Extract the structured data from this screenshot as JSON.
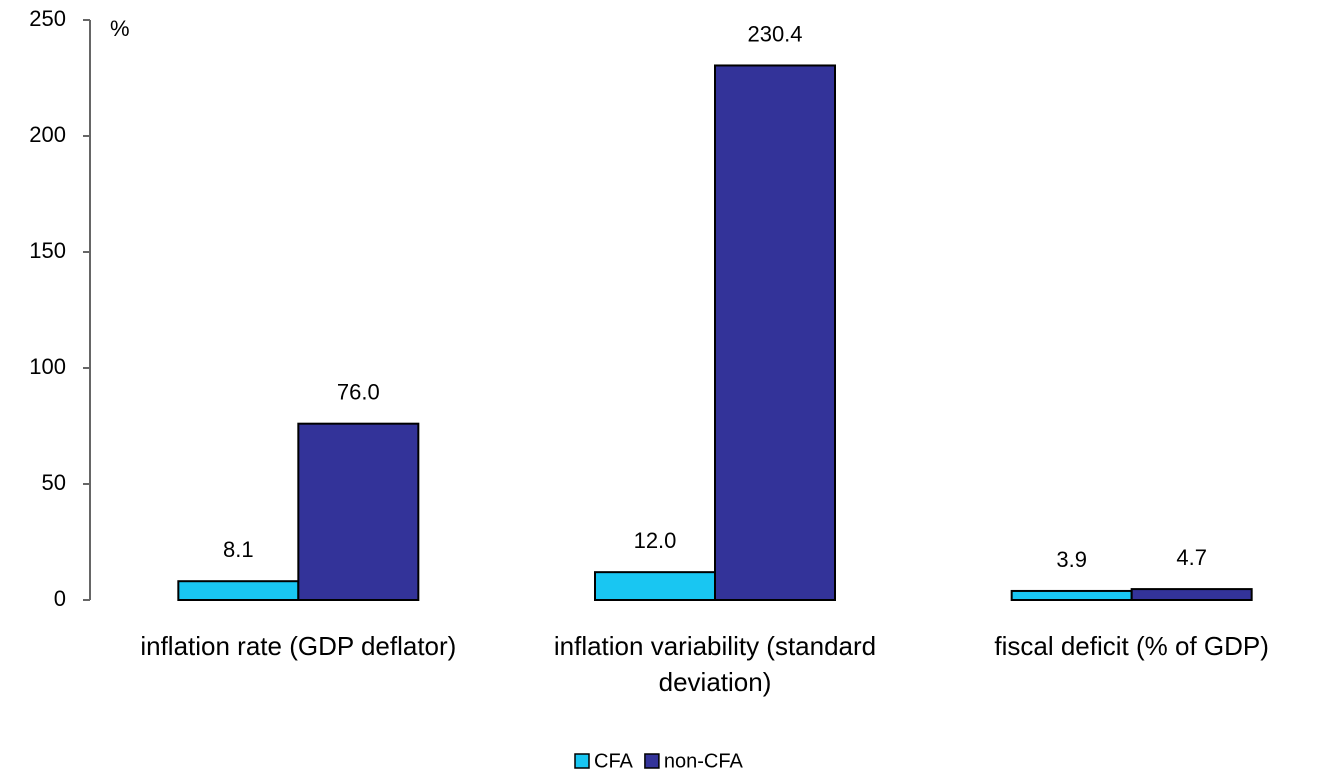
{
  "chart_data": {
    "type": "bar",
    "y_label": "%",
    "categories": [
      "inflation rate (GDP deflator)",
      "inflation variability (standard deviation)",
      "fiscal deficit (% of GDP)"
    ],
    "series": [
      {
        "name": "CFA",
        "color": "#19c6f2",
        "values": [
          8.1,
          12.0,
          3.9
        ],
        "value_labels": [
          "8.1",
          "12.0",
          "3.9"
        ]
      },
      {
        "name": "non-CFA",
        "color": "#333399",
        "values": [
          76.0,
          230.4,
          4.7
        ],
        "value_labels": [
          "76.0",
          "230.4",
          "4.7"
        ]
      }
    ],
    "ylim": [
      0,
      250
    ],
    "yticks": [
      0,
      50,
      100,
      150,
      200,
      250
    ],
    "grid": false,
    "legend": "bottom"
  }
}
